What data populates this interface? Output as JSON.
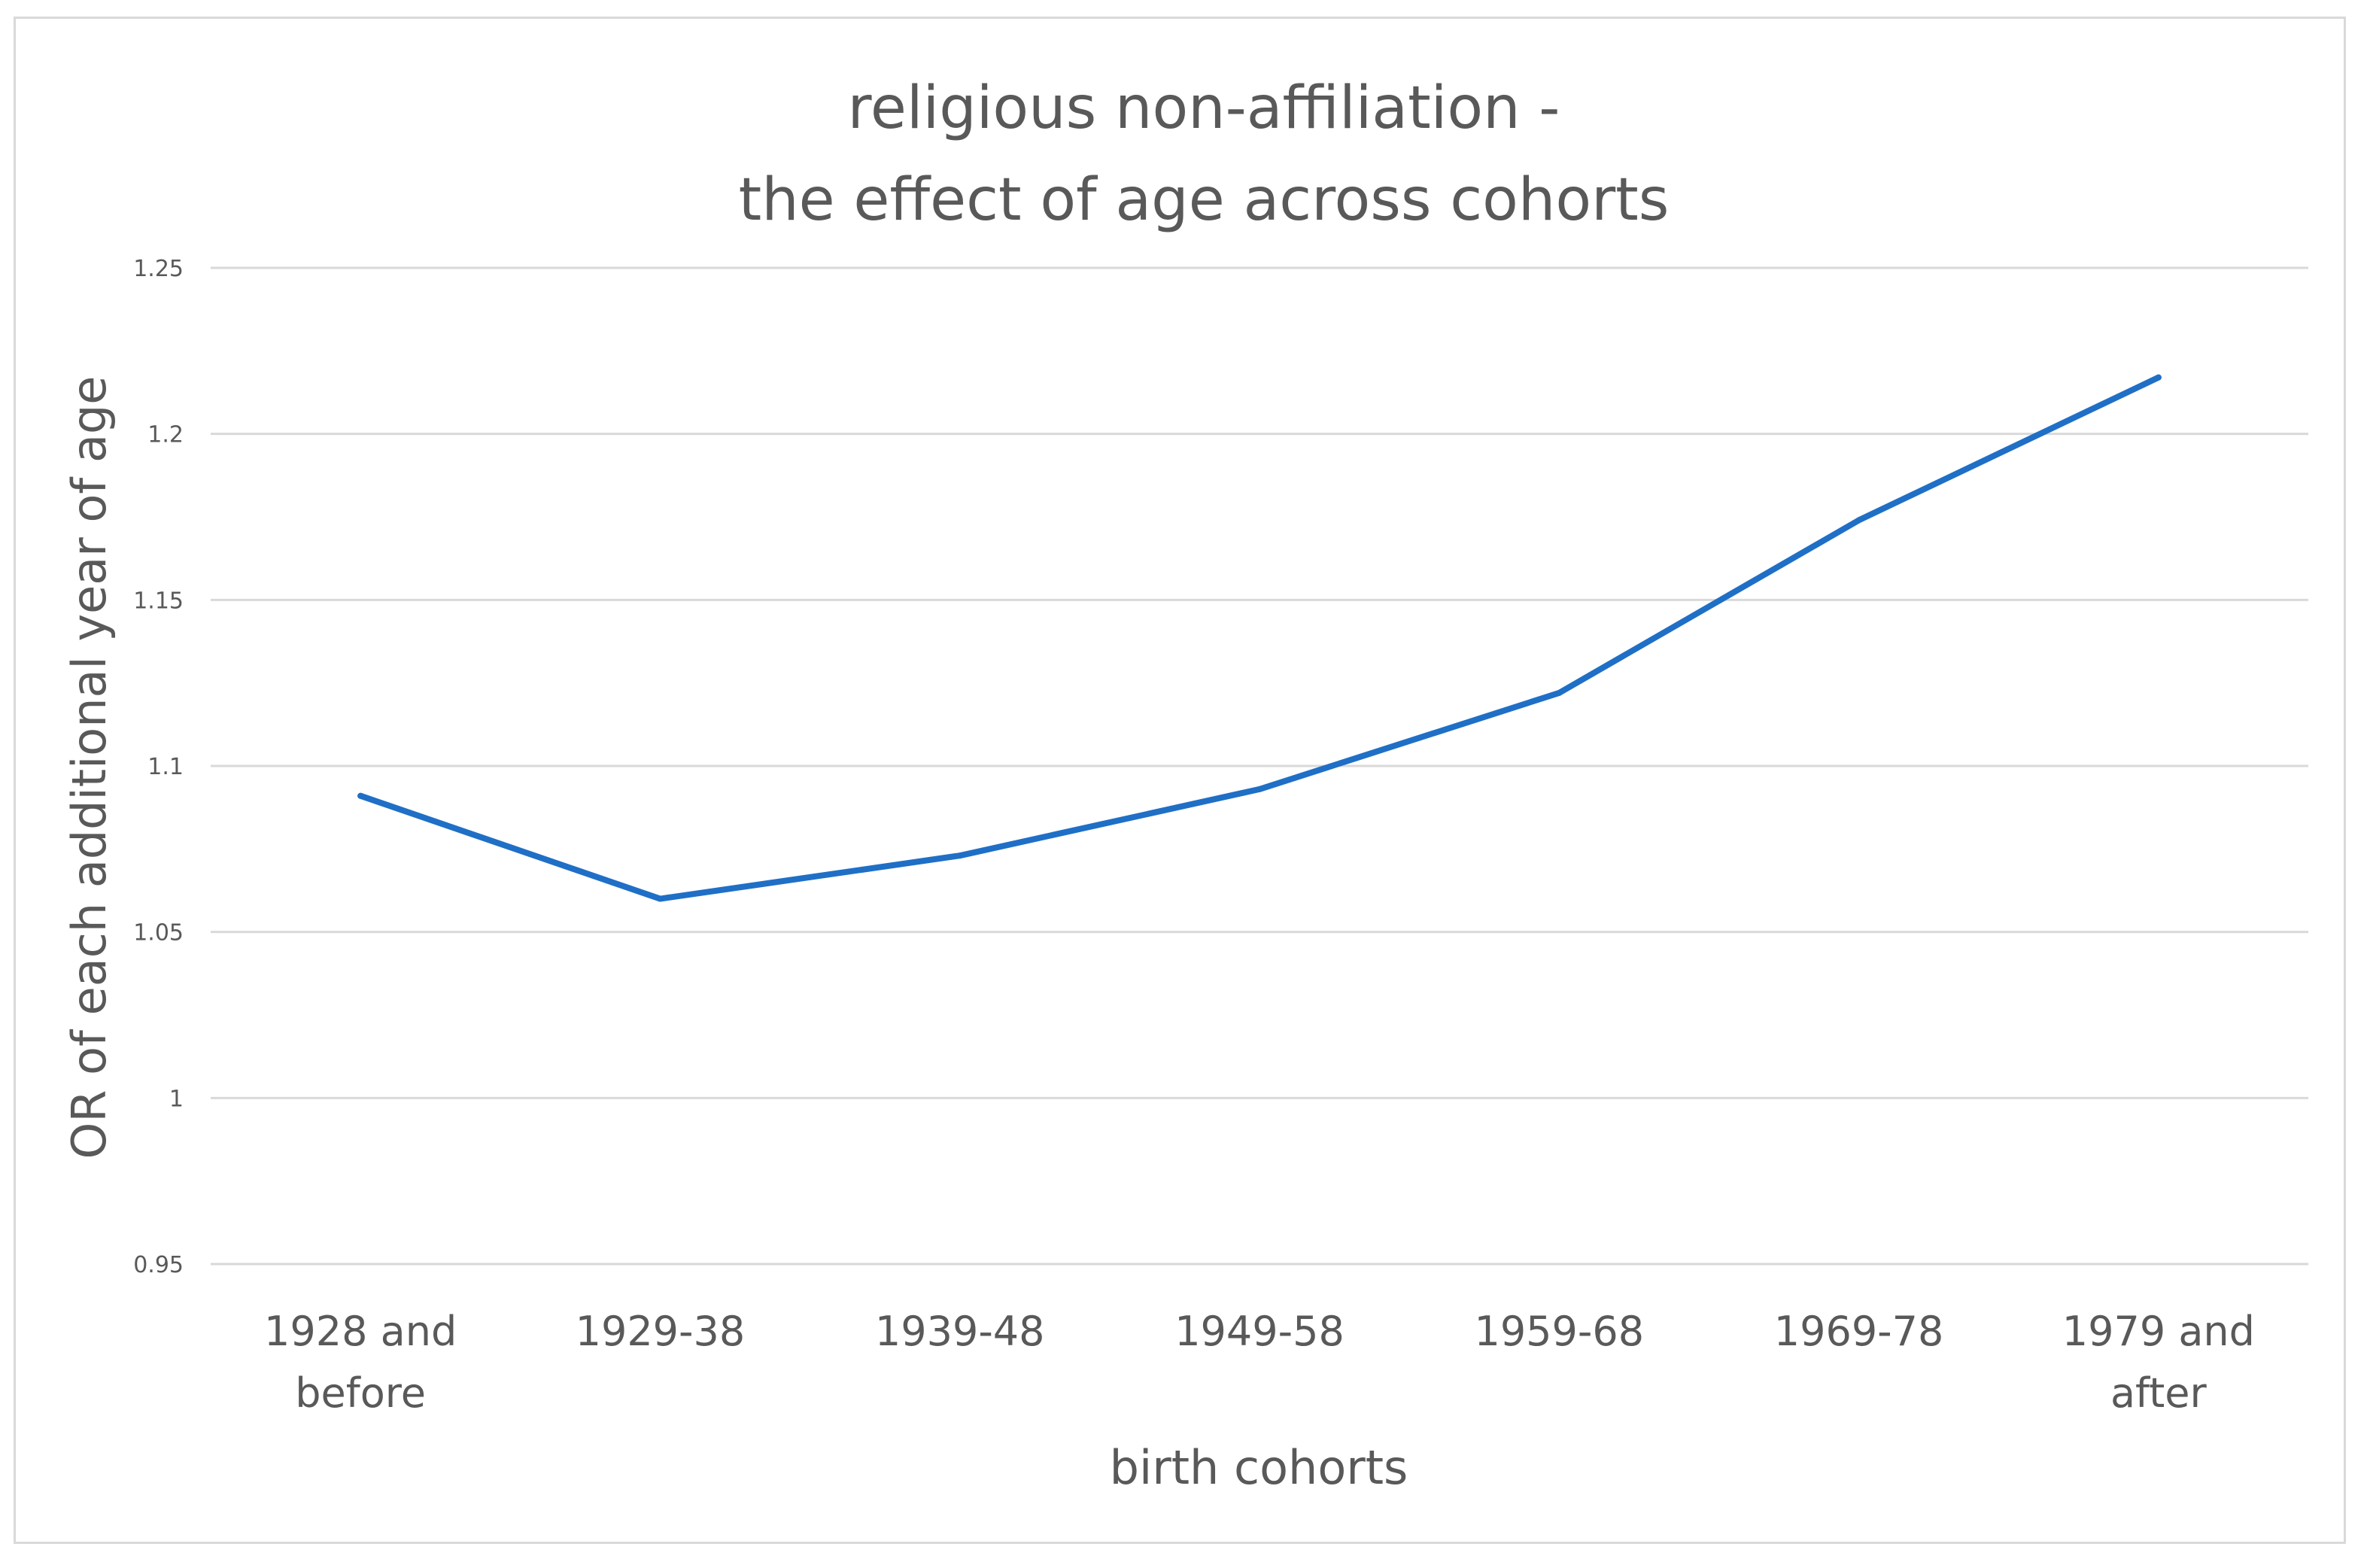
{
  "chart_data": {
    "type": "line",
    "title_lines": [
      "religious non-affiliation -",
      "the effect of age across cohorts"
    ],
    "xlabel": "birth cohorts",
    "ylabel": "OR of each additional year of age",
    "categories": [
      [
        "1928 and",
        "before"
      ],
      [
        "1929-38"
      ],
      [
        "1939-48"
      ],
      [
        "1949-58"
      ],
      [
        "1959-68"
      ],
      [
        "1969-78"
      ],
      [
        "1979 and",
        "after"
      ]
    ],
    "series": [
      {
        "color": "#1f6fc6",
        "values": [
          1.091,
          1.06,
          1.073,
          1.093,
          1.122,
          1.174,
          1.217
        ]
      }
    ],
    "ylim": [
      0.95,
      1.25
    ],
    "yticks": [
      0.95,
      1,
      1.05,
      1.1,
      1.15,
      1.2,
      1.25
    ],
    "ytick_labels": [
      "0.95",
      "1",
      "1.05",
      "1.1",
      "1.15",
      "1.2",
      "1.25"
    ],
    "grid": true,
    "legend": "none"
  }
}
